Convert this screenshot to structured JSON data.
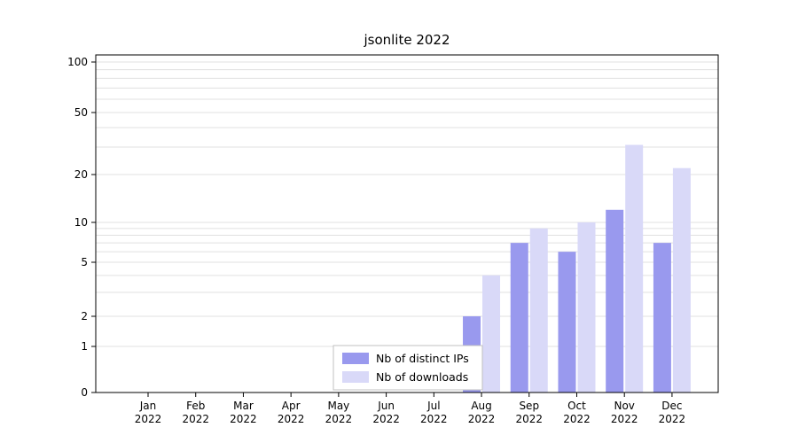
{
  "chart_data": {
    "type": "bar",
    "title": "jsonlite 2022",
    "year": "2022",
    "months": [
      "Jan",
      "Feb",
      "Mar",
      "Apr",
      "May",
      "Jun",
      "Jul",
      "Aug",
      "Sep",
      "Oct",
      "Nov",
      "Dec"
    ],
    "categories": [
      "Jan 2022",
      "Feb 2022",
      "Mar 2022",
      "Apr 2022",
      "May 2022",
      "Jun 2022",
      "Jul 2022",
      "Aug 2022",
      "Sep 2022",
      "Oct 2022",
      "Nov 2022",
      "Dec 2022"
    ],
    "series": [
      {
        "name": "Nb of distinct IPs",
        "color": "#9999ee",
        "values": [
          0,
          0,
          0,
          0,
          0,
          0,
          0,
          2,
          7,
          6,
          12,
          7
        ]
      },
      {
        "name": "Nb of downloads",
        "color": "#d9d9f8",
        "values": [
          0,
          0,
          0,
          0,
          0,
          0,
          0,
          4,
          9,
          10,
          31,
          22
        ]
      }
    ],
    "y_axis": {
      "scale": "log-like",
      "tick_values": [
        0,
        1,
        2,
        5,
        10,
        20,
        50,
        100
      ],
      "tick_labels": [
        "0",
        "1",
        "2",
        "5",
        "10",
        "20",
        "50",
        "100"
      ],
      "gridlines": [
        1,
        2,
        3,
        4,
        5,
        6,
        7,
        8,
        9,
        10,
        20,
        30,
        40,
        50,
        60,
        70,
        80,
        90,
        100
      ]
    },
    "legend": {
      "position": "bottom-center",
      "entries": [
        "Nb of distinct IPs",
        "Nb of downloads"
      ]
    },
    "grid": true,
    "grid_color": "#e0e0e0"
  }
}
